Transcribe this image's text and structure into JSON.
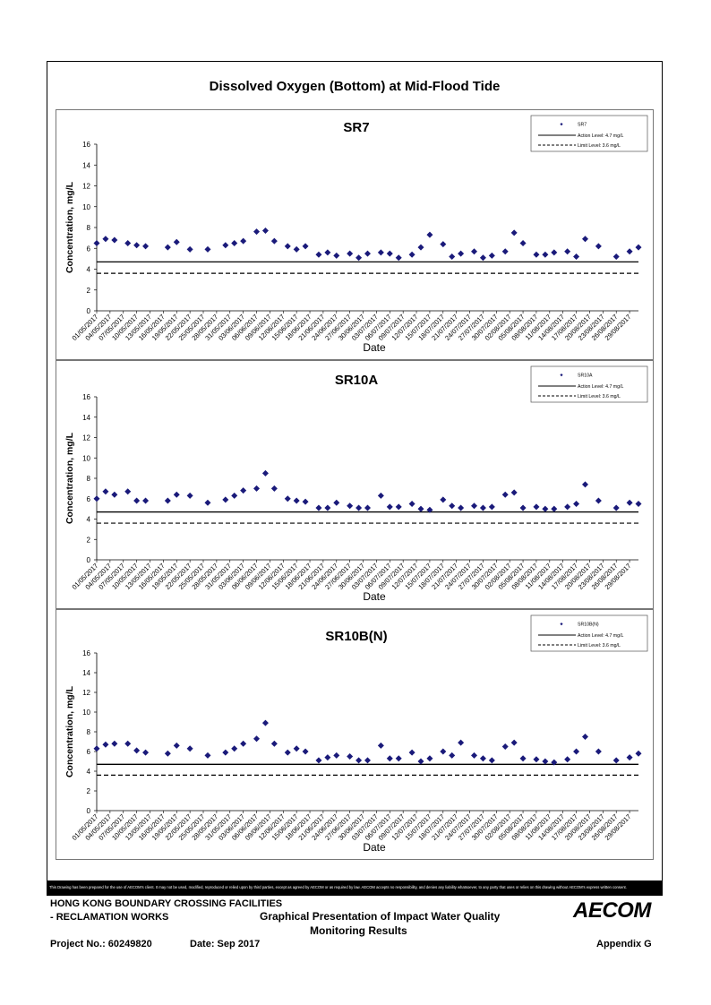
{
  "page_title": "Dissolved Oxygen (Bottom) at Mid-Flood Tide",
  "chart_data": [
    {
      "type": "scatter",
      "title": "SR7",
      "xlabel": "Date",
      "ylabel": "Concentration, mg/L",
      "ylim": [
        0,
        16
      ],
      "yticks": [
        0,
        2,
        4,
        6,
        8,
        10,
        12,
        14,
        16
      ],
      "legend_position": "top-right",
      "legend": [
        "SR7",
        "Action Level: 4.7 mg/L",
        "Limit Level: 3.6 mg/L"
      ],
      "action_level": 4.7,
      "limit_level": 3.6,
      "series": [
        {
          "name": "SR7",
          "x": [
            "01/05/2017",
            "03/05/2017",
            "05/05/2017",
            "08/05/2017",
            "10/05/2017",
            "12/05/2017",
            "17/05/2017",
            "19/05/2017",
            "22/05/2017",
            "26/05/2017",
            "30/05/2017",
            "01/06/2017",
            "03/06/2017",
            "06/06/2017",
            "08/06/2017",
            "10/06/2017",
            "13/06/2017",
            "15/06/2017",
            "17/06/2017",
            "20/06/2017",
            "22/06/2017",
            "24/06/2017",
            "27/06/2017",
            "29/06/2017",
            "01/07/2017",
            "04/07/2017",
            "06/07/2017",
            "08/07/2017",
            "11/07/2017",
            "13/07/2017",
            "15/07/2017",
            "18/07/2017",
            "20/07/2017",
            "22/07/2017",
            "25/07/2017",
            "27/07/2017",
            "29/07/2017",
            "01/08/2017",
            "03/08/2017",
            "05/08/2017",
            "08/08/2017",
            "10/08/2017",
            "12/08/2017",
            "15/08/2017",
            "17/08/2017",
            "19/08/2017",
            "22/08/2017",
            "26/08/2017",
            "29/08/2017",
            "31/08/2017"
          ],
          "y": [
            6.5,
            6.9,
            6.8,
            6.5,
            6.3,
            6.2,
            6.1,
            6.6,
            5.9,
            5.9,
            6.3,
            6.5,
            6.7,
            7.6,
            7.7,
            6.7,
            6.2,
            5.9,
            6.2,
            5.4,
            5.6,
            5.3,
            5.5,
            5.1,
            5.5,
            5.6,
            5.5,
            5.1,
            5.4,
            6.1,
            7.3,
            6.4,
            5.2,
            5.5,
            5.7,
            5.1,
            5.3,
            5.7,
            7.5,
            6.5,
            5.4,
            5.4,
            5.6,
            5.7,
            5.2,
            6.9,
            6.2,
            5.2,
            5.7,
            6.1
          ]
        }
      ]
    },
    {
      "type": "scatter",
      "title": "SR10A",
      "xlabel": "Date",
      "ylabel": "Concentration, mg/L",
      "ylim": [
        0,
        16
      ],
      "yticks": [
        0,
        2,
        4,
        6,
        8,
        10,
        12,
        14,
        16
      ],
      "legend_position": "top-right",
      "legend": [
        "SR10A",
        "Action Level: 4.7 mg/L",
        "Limit Level: 3.6 mg/L"
      ],
      "action_level": 4.7,
      "limit_level": 3.6,
      "series": [
        {
          "name": "SR10A",
          "x": [
            "01/05/2017",
            "03/05/2017",
            "05/05/2017",
            "08/05/2017",
            "10/05/2017",
            "12/05/2017",
            "17/05/2017",
            "19/05/2017",
            "22/05/2017",
            "26/05/2017",
            "30/05/2017",
            "01/06/2017",
            "03/06/2017",
            "06/06/2017",
            "08/06/2017",
            "10/06/2017",
            "13/06/2017",
            "15/06/2017",
            "17/06/2017",
            "20/06/2017",
            "22/06/2017",
            "24/06/2017",
            "27/06/2017",
            "29/06/2017",
            "01/07/2017",
            "04/07/2017",
            "06/07/2017",
            "08/07/2017",
            "11/07/2017",
            "13/07/2017",
            "15/07/2017",
            "18/07/2017",
            "20/07/2017",
            "22/07/2017",
            "25/07/2017",
            "27/07/2017",
            "29/07/2017",
            "01/08/2017",
            "03/08/2017",
            "05/08/2017",
            "08/08/2017",
            "10/08/2017",
            "12/08/2017",
            "15/08/2017",
            "17/08/2017",
            "19/08/2017",
            "22/08/2017",
            "26/08/2017",
            "29/08/2017",
            "31/08/2017"
          ],
          "y": [
            6.0,
            6.7,
            6.4,
            6.7,
            5.8,
            5.8,
            5.8,
            6.4,
            6.3,
            5.6,
            5.9,
            6.3,
            6.8,
            7.0,
            8.5,
            7.0,
            6.0,
            5.8,
            5.7,
            5.1,
            5.1,
            5.6,
            5.3,
            5.1,
            5.1,
            6.3,
            5.2,
            5.2,
            5.5,
            5.0,
            4.9,
            5.9,
            5.3,
            5.1,
            5.3,
            5.1,
            5.2,
            6.4,
            6.6,
            5.1,
            5.2,
            5.0,
            5.0,
            5.2,
            5.5,
            7.4,
            5.8,
            5.1,
            5.6,
            5.5
          ]
        }
      ]
    },
    {
      "type": "scatter",
      "title": "SR10B(N)",
      "xlabel": "Date",
      "ylabel": "Concentration, mg/L",
      "ylim": [
        0,
        16
      ],
      "yticks": [
        0,
        2,
        4,
        6,
        8,
        10,
        12,
        14,
        16
      ],
      "legend_position": "top-right",
      "legend": [
        "SR10B(N)",
        "Action Level: 4.7 mg/L",
        "Limit Level: 3.6 mg/L"
      ],
      "action_level": 4.7,
      "limit_level": 3.6,
      "series": [
        {
          "name": "SR10B(N)",
          "x": [
            "01/05/2017",
            "03/05/2017",
            "05/05/2017",
            "08/05/2017",
            "10/05/2017",
            "12/05/2017",
            "17/05/2017",
            "19/05/2017",
            "22/05/2017",
            "26/05/2017",
            "30/05/2017",
            "01/06/2017",
            "03/06/2017",
            "06/06/2017",
            "08/06/2017",
            "10/06/2017",
            "13/06/2017",
            "15/06/2017",
            "17/06/2017",
            "20/06/2017",
            "22/06/2017",
            "24/06/2017",
            "27/06/2017",
            "29/06/2017",
            "01/07/2017",
            "04/07/2017",
            "06/07/2017",
            "08/07/2017",
            "11/07/2017",
            "13/07/2017",
            "15/07/2017",
            "18/07/2017",
            "20/07/2017",
            "22/07/2017",
            "25/07/2017",
            "27/07/2017",
            "29/07/2017",
            "01/08/2017",
            "03/08/2017",
            "05/08/2017",
            "08/08/2017",
            "10/08/2017",
            "12/08/2017",
            "15/08/2017",
            "17/08/2017",
            "19/08/2017",
            "22/08/2017",
            "26/08/2017",
            "29/08/2017",
            "31/08/2017"
          ],
          "y": [
            6.3,
            6.7,
            6.8,
            6.8,
            6.1,
            5.9,
            5.8,
            6.6,
            6.3,
            5.6,
            5.9,
            6.3,
            6.8,
            7.3,
            8.9,
            6.8,
            5.9,
            6.3,
            6.0,
            5.1,
            5.4,
            5.6,
            5.5,
            5.1,
            5.1,
            6.6,
            5.3,
            5.3,
            5.9,
            5.0,
            5.3,
            6.0,
            5.6,
            6.9,
            5.6,
            5.3,
            5.1,
            6.5,
            6.9,
            5.3,
            5.2,
            5.0,
            4.9,
            5.2,
            6.0,
            7.5,
            6.0,
            5.1,
            5.4,
            5.8
          ]
        }
      ]
    }
  ],
  "x_tick_labels": [
    "01/05/2017",
    "04/05/2017",
    "07/05/2017",
    "10/05/2017",
    "13/05/2017",
    "16/05/2017",
    "19/05/2017",
    "22/05/2017",
    "25/05/2017",
    "28/05/2017",
    "31/05/2017",
    "03/06/2017",
    "06/06/2017",
    "09/06/2017",
    "12/06/2017",
    "15/06/2017",
    "18/06/2017",
    "21/06/2017",
    "24/06/2017",
    "27/06/2017",
    "30/06/2017",
    "03/07/2017",
    "06/07/2017",
    "09/07/2017",
    "12/07/2017",
    "15/07/2017",
    "18/07/2017",
    "21/07/2017",
    "24/07/2017",
    "27/07/2017",
    "30/07/2017",
    "02/08/2017",
    "05/08/2017",
    "08/08/2017",
    "11/08/2017",
    "14/08/2017",
    "17/08/2017",
    "20/08/2017",
    "23/08/2017",
    "26/08/2017",
    "29/08/2017"
  ],
  "disclaimer": "This Drawing has been prepared for the use of AECOM's client. It may not be used, modified, reproduced or relied upon by third parties, except as agreed by AECOM or as required by law. AECOM accepts no responsibility, and denies any liability whatsoever, to any party that uses or relies on this drawing without AECOM's express written consent.",
  "footer": {
    "project_line1": "HONG KONG BOUNDARY CROSSING FACILITIES",
    "project_line2": "- RECLAMATION WORKS",
    "description_line1": "Graphical Presentation of Impact Water Quality",
    "description_line2": "Monitoring Results",
    "project_no": "Project No.: 60249820",
    "date": "Date: Sep 2017",
    "appendix": "Appendix G",
    "logo": "AECOM"
  },
  "colors": {
    "marker": "#1a1a7a",
    "line": "#000000"
  }
}
